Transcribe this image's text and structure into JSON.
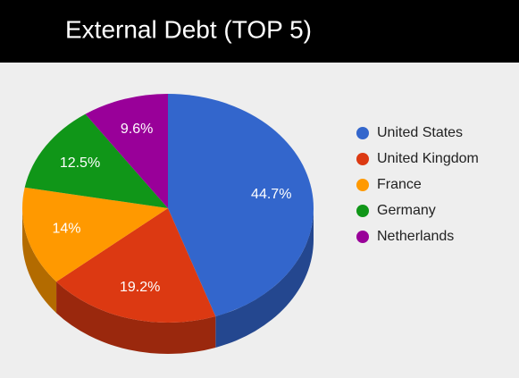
{
  "chart_data": {
    "type": "pie3d",
    "title": "External Debt (TOP 5)",
    "categories": [
      "United States",
      "United Kingdom",
      "France",
      "Germany",
      "Netherlands"
    ],
    "values": [
      44.7,
      19.2,
      14,
      12.5,
      9.6
    ],
    "value_labels": [
      "44.7%",
      "19.2%",
      "14%",
      "12.5%",
      "9.6%"
    ],
    "colors": [
      "#3366cc",
      "#dc3912",
      "#ff9900",
      "#109618",
      "#990099"
    ],
    "legend": "right"
  }
}
